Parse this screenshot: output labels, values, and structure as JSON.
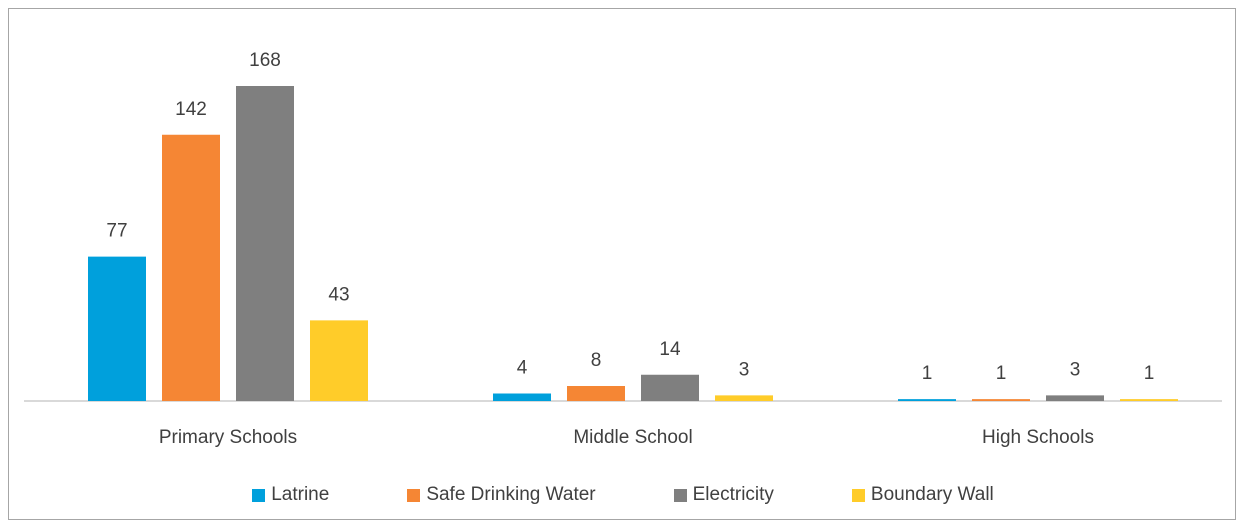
{
  "chart_data": {
    "type": "bar",
    "categories": [
      "Primary Schools",
      "Middle School",
      "High Schools"
    ],
    "series": [
      {
        "name": "Latrine",
        "color": "#00a0dc",
        "values": [
          77,
          4,
          1
        ]
      },
      {
        "name": "Safe Drinking Water",
        "color": "#f58634",
        "values": [
          142,
          8,
          1
        ]
      },
      {
        "name": "Electricity",
        "color": "#7f7f7f",
        "values": [
          168,
          14,
          3
        ]
      },
      {
        "name": "Boundary Wall",
        "color": "#ffcc29",
        "values": [
          43,
          3,
          1
        ]
      }
    ],
    "ylim": [
      0,
      170
    ],
    "grid": false,
    "legend_position": "bottom"
  }
}
